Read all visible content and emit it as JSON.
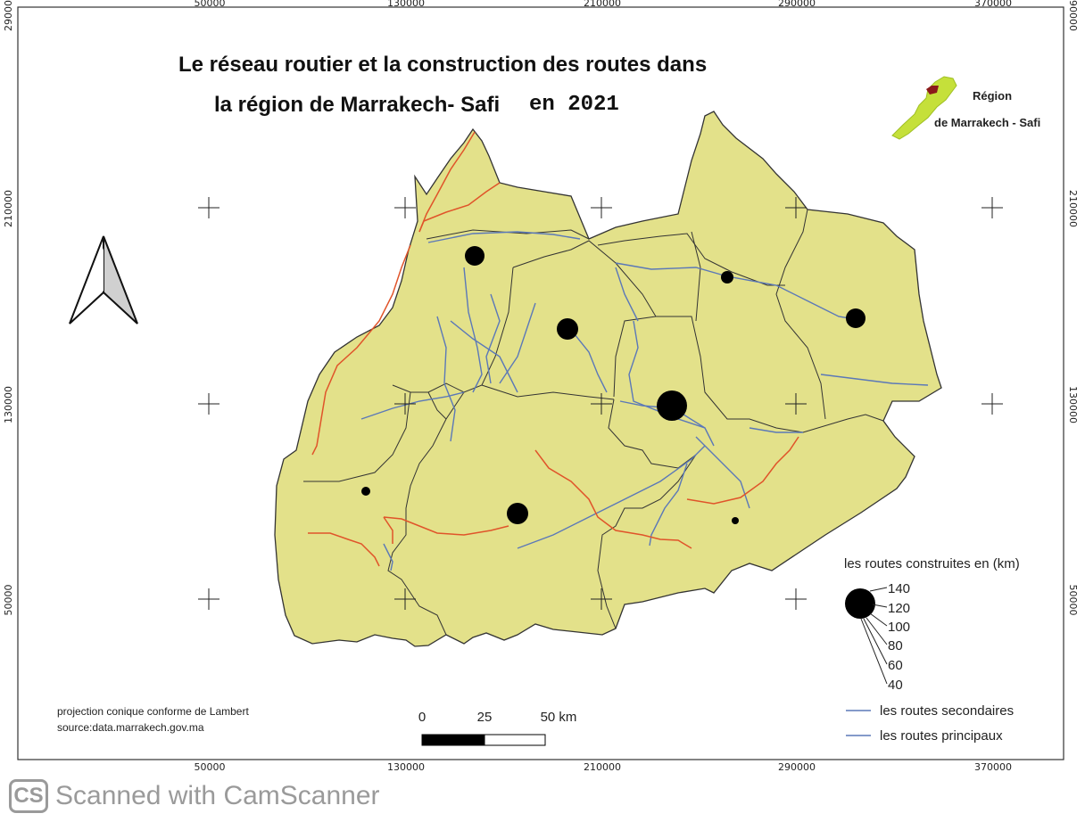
{
  "title": {
    "line1": "Le réseau routier  et la construction des routes  dans",
    "line2": "la région de Marrakech- Safi",
    "year": "en 2021"
  },
  "inset": {
    "line1": "Région",
    "line2": "de Marrakech - Safi"
  },
  "graticule": {
    "x_ticks": [
      "50000",
      "130000",
      "210000",
      "290000",
      "370000"
    ],
    "y_ticks": [
      "290000",
      "210000",
      "130000",
      "50000"
    ]
  },
  "legend": {
    "circles_title": "les routes construites en (km)",
    "circle_values": [
      "140",
      "120",
      "100",
      "80",
      "60",
      "40"
    ],
    "secondary_roads": "les routes secondaires",
    "primary_roads": "les routes principaux"
  },
  "scale_bar": {
    "labels": [
      "0",
      "25",
      "50 km"
    ]
  },
  "projection": {
    "line1": "projection conique conforme de Lambert",
    "line2": "source:data.marrakech.gov.ma"
  },
  "footer": {
    "logo": "CS",
    "text": "Scanned with CamScanner"
  },
  "colors": {
    "region_fill": "#e3e18a",
    "border": "#333333",
    "secondary_road": "#5b78b8",
    "primary_road": "#e0542a",
    "inset_fill": "#c5e03a",
    "inset_highlight": "#8b1a1a"
  },
  "icons": [
    "north-arrow-icon",
    "camscanner-logo-icon"
  ]
}
